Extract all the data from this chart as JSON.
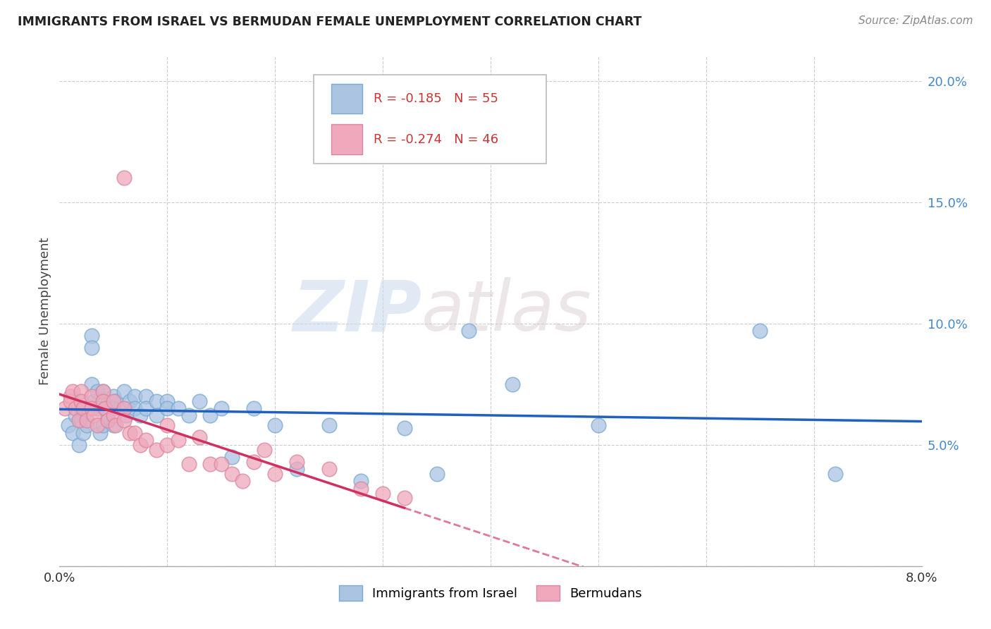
{
  "title": "IMMIGRANTS FROM ISRAEL VS BERMUDAN FEMALE UNEMPLOYMENT CORRELATION CHART",
  "source": "Source: ZipAtlas.com",
  "ylabel": "Female Unemployment",
  "watermark_zip": "ZIP",
  "watermark_atlas": "atlas",
  "xlim": [
    0.0,
    0.08
  ],
  "ylim": [
    0.0,
    0.21
  ],
  "blue_R": "-0.185",
  "blue_N": "55",
  "pink_R": "-0.274",
  "pink_N": "46",
  "blue_color": "#aac4e2",
  "blue_edge_color": "#7aaad0",
  "blue_line_color": "#2060c0",
  "pink_color": "#f0a8bc",
  "pink_edge_color": "#d888a0",
  "pink_line_color": "#d03060",
  "blue_scatter_x": [
    0.0008,
    0.0012,
    0.0015,
    0.0018,
    0.002,
    0.002,
    0.0022,
    0.0025,
    0.003,
    0.003,
    0.003,
    0.0032,
    0.0035,
    0.0035,
    0.0038,
    0.004,
    0.004,
    0.004,
    0.0042,
    0.0045,
    0.005,
    0.005,
    0.005,
    0.0052,
    0.006,
    0.006,
    0.0062,
    0.0065,
    0.007,
    0.007,
    0.0075,
    0.008,
    0.008,
    0.009,
    0.009,
    0.01,
    0.01,
    0.011,
    0.012,
    0.013,
    0.014,
    0.015,
    0.016,
    0.018,
    0.02,
    0.022,
    0.025,
    0.028,
    0.032,
    0.035,
    0.038,
    0.042,
    0.05,
    0.065,
    0.072
  ],
  "blue_scatter_y": [
    0.058,
    0.055,
    0.062,
    0.05,
    0.065,
    0.06,
    0.055,
    0.058,
    0.095,
    0.09,
    0.075,
    0.068,
    0.072,
    0.065,
    0.055,
    0.072,
    0.068,
    0.058,
    0.065,
    0.06,
    0.07,
    0.065,
    0.058,
    0.068,
    0.072,
    0.065,
    0.062,
    0.068,
    0.07,
    0.065,
    0.062,
    0.07,
    0.065,
    0.068,
    0.062,
    0.068,
    0.065,
    0.065,
    0.062,
    0.068,
    0.062,
    0.065,
    0.045,
    0.065,
    0.058,
    0.04,
    0.058,
    0.035,
    0.057,
    0.038,
    0.097,
    0.075,
    0.058,
    0.097,
    0.038
  ],
  "pink_scatter_x": [
    0.0005,
    0.001,
    0.001,
    0.0012,
    0.0015,
    0.0018,
    0.002,
    0.002,
    0.0022,
    0.0025,
    0.003,
    0.003,
    0.0032,
    0.0035,
    0.004,
    0.004,
    0.0042,
    0.0045,
    0.005,
    0.005,
    0.0052,
    0.006,
    0.006,
    0.0065,
    0.007,
    0.0075,
    0.008,
    0.009,
    0.01,
    0.01,
    0.011,
    0.012,
    0.013,
    0.014,
    0.015,
    0.016,
    0.017,
    0.018,
    0.019,
    0.02,
    0.022,
    0.025,
    0.028,
    0.03,
    0.032,
    0.006
  ],
  "pink_scatter_y": [
    0.065,
    0.07,
    0.068,
    0.072,
    0.065,
    0.06,
    0.072,
    0.068,
    0.065,
    0.06,
    0.07,
    0.065,
    0.062,
    0.058,
    0.072,
    0.068,
    0.065,
    0.06,
    0.068,
    0.062,
    0.058,
    0.065,
    0.06,
    0.055,
    0.055,
    0.05,
    0.052,
    0.048,
    0.058,
    0.05,
    0.052,
    0.042,
    0.053,
    0.042,
    0.042,
    0.038,
    0.035,
    0.043,
    0.048,
    0.038,
    0.043,
    0.04,
    0.032,
    0.03,
    0.028,
    0.16
  ],
  "yticks": [
    0.0,
    0.05,
    0.1,
    0.15,
    0.2
  ],
  "ytick_labels": [
    "",
    "5.0%",
    "10.0%",
    "15.0%",
    "20.0%"
  ],
  "xticks": [
    0.0,
    0.01,
    0.02,
    0.03,
    0.04,
    0.05,
    0.06,
    0.07,
    0.08
  ],
  "xtick_labels": [
    "0.0%",
    "",
    "",
    "",
    "",
    "",
    "",
    "",
    "8.0%"
  ],
  "grid_color": "#cccccc",
  "background_color": "#ffffff",
  "title_color": "#222222",
  "source_color": "#888888",
  "ylabel_color": "#444444",
  "right_tick_color": "#4488cc",
  "legend_text_color": "#cc3333"
}
